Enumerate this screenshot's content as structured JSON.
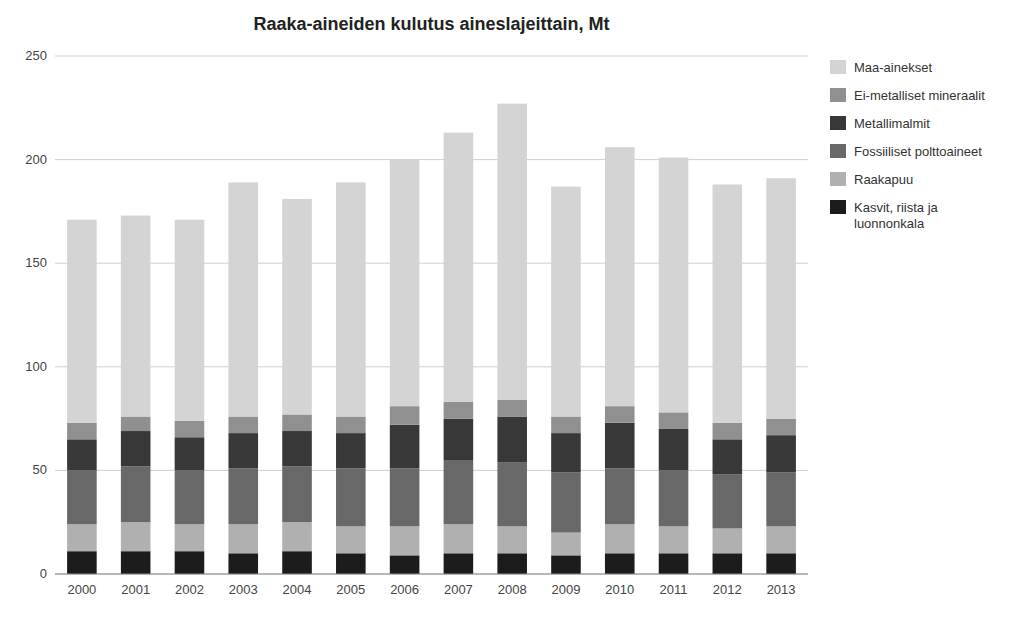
{
  "chart_data": {
    "type": "bar",
    "stacked": true,
    "title": "Raaka-aineiden kulutus aineslajeittain, Mt",
    "categories": [
      "2000",
      "2001",
      "2002",
      "2003",
      "2004",
      "2005",
      "2006",
      "2007",
      "2008",
      "2009",
      "2010",
      "2011",
      "2012",
      "2013"
    ],
    "series": [
      {
        "name": "Kasvit, riista ja\nluonnonkala",
        "color": "#1c1c1c",
        "values": [
          11,
          11,
          11,
          10,
          11,
          10,
          9,
          10,
          10,
          9,
          10,
          10,
          10,
          10
        ]
      },
      {
        "name": "Raakapuu",
        "color": "#b0b0b0",
        "values": [
          13,
          14,
          13,
          14,
          14,
          13,
          14,
          14,
          13,
          11,
          14,
          13,
          12,
          13
        ]
      },
      {
        "name": "Fossiiliset polttoaineet",
        "color": "#686868",
        "values": [
          26,
          27,
          26,
          27,
          27,
          28,
          28,
          31,
          31,
          29,
          27,
          27,
          26,
          26
        ]
      },
      {
        "name": "Metallimalmit",
        "color": "#383838",
        "values": [
          15,
          17,
          16,
          17,
          17,
          17,
          21,
          20,
          22,
          19,
          22,
          20,
          17,
          18
        ]
      },
      {
        "name": "Ei-metalliset mineraalit",
        "color": "#909090",
        "values": [
          8,
          7,
          8,
          8,
          8,
          8,
          9,
          8,
          8,
          8,
          8,
          8,
          8,
          8
        ]
      },
      {
        "name": "Maa-ainekset",
        "color": "#d4d4d4",
        "values": [
          98,
          97,
          97,
          113,
          104,
          113,
          119,
          130,
          143,
          111,
          125,
          123,
          115,
          116
        ]
      }
    ],
    "ylim": [
      0,
      250
    ],
    "yticks": [
      0,
      50,
      100,
      150,
      200,
      250
    ],
    "grid": true,
    "legend": "right"
  }
}
